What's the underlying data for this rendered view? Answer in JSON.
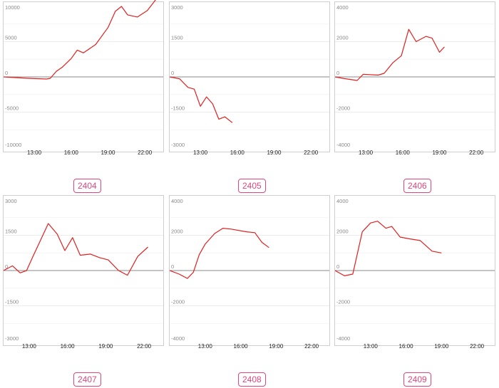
{
  "chart_data": [
    {
      "type": "line",
      "label": "2404",
      "x_ticks": [
        "13:00",
        "16:00",
        "19:00",
        "22:00"
      ],
      "y_ticks": [
        "10000",
        "5000",
        "0",
        "-5000",
        "-10000"
      ],
      "ylim": [
        -10000,
        10000
      ],
      "xlim": [
        10.5,
        23.5
      ],
      "x": [
        10.5,
        11.5,
        12.5,
        14.0,
        14.3,
        14.8,
        15.3,
        16.0,
        16.5,
        17.0,
        18.0,
        19.0,
        19.6,
        20.1,
        20.6,
        21.4,
        22.2,
        23.0
      ],
      "y": [
        0,
        -100,
        -200,
        -300,
        -200,
        800,
        1400,
        2600,
        3800,
        3400,
        4600,
        7000,
        9300,
        10000,
        8800,
        8500,
        9400,
        11200
      ],
      "color": "#e02020"
    },
    {
      "type": "line",
      "label": "2405",
      "x_ticks": [
        "13:00",
        "16:00",
        "19:00",
        "22:00"
      ],
      "y_ticks": [
        "3000",
        "1500",
        "0",
        "-1500",
        "-3000"
      ],
      "ylim": [
        -3000,
        3000
      ],
      "xlim": [
        10.5,
        23.5
      ],
      "x": [
        10.5,
        11.3,
        12.0,
        12.5,
        13.0,
        13.5,
        14.0,
        14.5,
        15.0,
        15.6
      ],
      "y": [
        0,
        -80,
        -450,
        -520,
        -1250,
        -850,
        -1150,
        -1800,
        -1700,
        -1950
      ],
      "color": "#e02020"
    },
    {
      "type": "line",
      "label": "2406",
      "x_ticks": [
        "13:00",
        "16:00",
        "19:00",
        "22:00"
      ],
      "y_ticks": [
        "4000",
        "2000",
        "0",
        "-2000",
        "-4000"
      ],
      "ylim": [
        -4000,
        4000
      ],
      "xlim": [
        10.5,
        23.5
      ],
      "x": [
        10.5,
        11.3,
        12.3,
        12.8,
        14.0,
        14.5,
        15.2,
        15.9,
        16.5,
        17.1,
        17.9,
        18.4,
        19.0,
        19.4
      ],
      "y": [
        0,
        -100,
        -200,
        150,
        100,
        200,
        800,
        1200,
        2700,
        2000,
        2300,
        2200,
        1400,
        1700
      ],
      "color": "#e02020"
    },
    {
      "type": "line",
      "label": "2407",
      "x_ticks": [
        "13:00",
        "16:00",
        "19:00",
        "22:00"
      ],
      "y_ticks": [
        "3000",
        "1500",
        "0",
        "-1500",
        "-3000"
      ],
      "ylim": [
        -3000,
        3000
      ],
      "xlim": [
        11.0,
        23.5
      ],
      "x": [
        11.0,
        11.7,
        12.3,
        12.8,
        13.3,
        13.9,
        14.5,
        15.2,
        15.8,
        16.4,
        17.0,
        17.8,
        18.5,
        19.2,
        20.0,
        20.7,
        21.5,
        22.3
      ],
      "y": [
        0,
        200,
        -100,
        0,
        600,
        1300,
        2000,
        1550,
        850,
        1400,
        650,
        700,
        550,
        450,
        0,
        -200,
        600,
        1000
      ],
      "color": "#e02020"
    },
    {
      "type": "line",
      "label": "2408",
      "x_ticks": [
        "13:00",
        "16:00",
        "19:00",
        "22:00"
      ],
      "y_ticks": [
        "4000",
        "2000",
        "0",
        "-2000",
        "-4000"
      ],
      "ylim": [
        -4000,
        4000
      ],
      "xlim": [
        10.0,
        23.5
      ],
      "x": [
        10.0,
        10.8,
        11.5,
        12.0,
        12.5,
        13.0,
        13.8,
        14.5,
        15.2,
        16.5,
        17.2,
        17.8,
        18.4
      ],
      "y": [
        0,
        -200,
        -450,
        -100,
        900,
        1500,
        2100,
        2400,
        2350,
        2200,
        2150,
        1600,
        1300
      ],
      "color": "#e02020"
    },
    {
      "type": "line",
      "label": "2409",
      "x_ticks": [
        "13:00",
        "16:00",
        "19:00",
        "22:00"
      ],
      "y_ticks": [
        "4000",
        "2000",
        "0",
        "-2000",
        "-4000"
      ],
      "ylim": [
        -4000,
        4000
      ],
      "xlim": [
        10.0,
        23.5
      ],
      "x": [
        10.0,
        10.8,
        11.5,
        12.3,
        13.0,
        13.6,
        14.3,
        14.8,
        15.5,
        16.3,
        17.2,
        18.2,
        19.0
      ],
      "y": [
        0,
        -300,
        -200,
        2200,
        2700,
        2800,
        2400,
        2500,
        1900,
        1800,
        1700,
        1100,
        1000
      ],
      "color": "#e02020"
    }
  ]
}
